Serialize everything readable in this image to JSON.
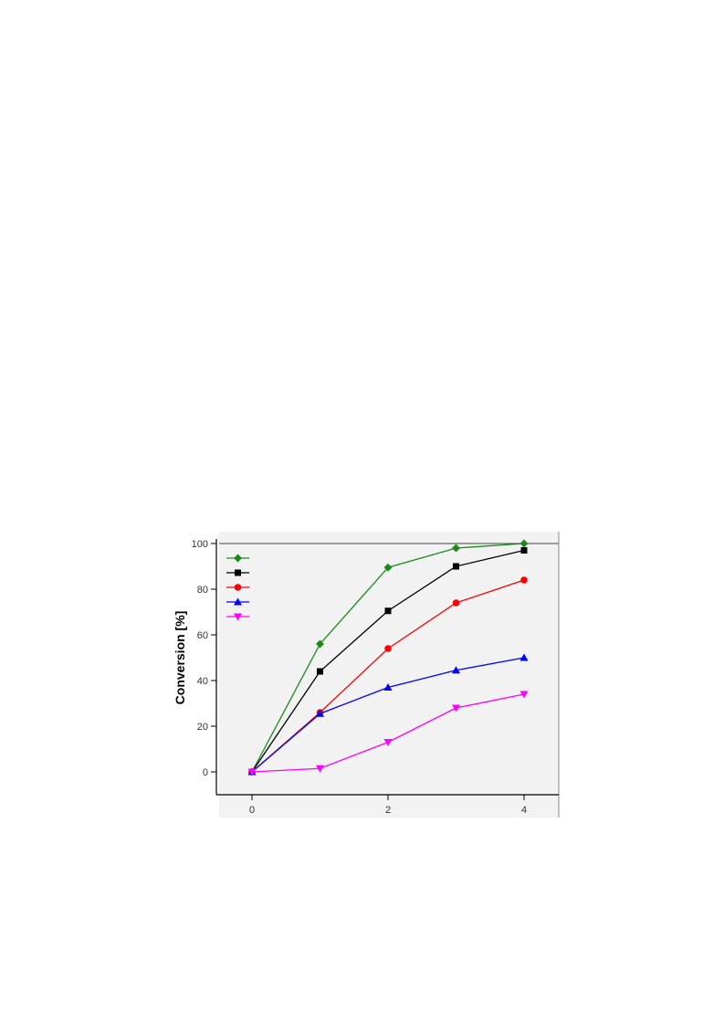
{
  "chart_data": {
    "type": "line",
    "title": "",
    "xlabel": "",
    "ylabel": "Conversion [%]",
    "x": [
      0,
      1,
      2,
      3,
      4
    ],
    "xlim": [
      -0.5,
      4.5
    ],
    "ylim": [
      -10,
      100
    ],
    "xticks": [
      0,
      2,
      4
    ],
    "yticks": [
      0,
      20,
      40,
      60,
      80,
      100
    ],
    "grid": false,
    "legend_position": "top-left",
    "series": [
      {
        "values": [
          0,
          56,
          89.5,
          98,
          100
        ],
        "color": "#1a8a1a",
        "marker": "diamond"
      },
      {
        "values": [
          0,
          44,
          70.5,
          90,
          97
        ],
        "color": "#000000",
        "marker": "square"
      },
      {
        "values": [
          0,
          26,
          54,
          74,
          84
        ],
        "color": "#ff0000",
        "marker": "circle"
      },
      {
        "values": [
          0,
          25.5,
          37,
          44.5,
          50
        ],
        "color": "#0000ff",
        "marker": "triangle-up"
      },
      {
        "values": [
          0,
          1.5,
          13,
          28,
          34
        ],
        "color": "#ff00ff",
        "marker": "triangle-down"
      }
    ]
  }
}
